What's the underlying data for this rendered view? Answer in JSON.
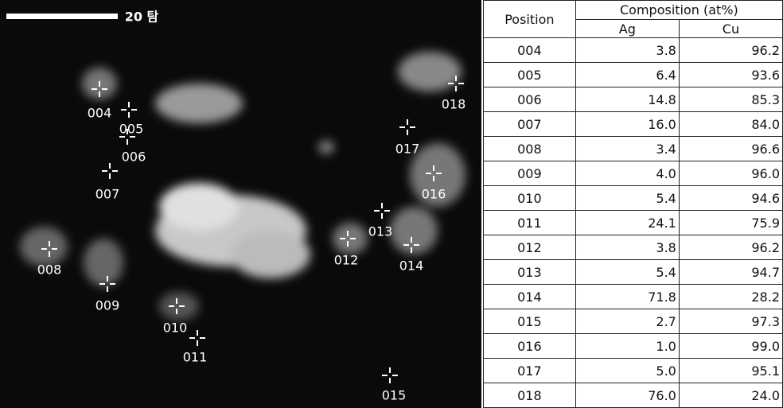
{
  "image": {
    "scale_label": "20 탐",
    "points": [
      "004",
      "005",
      "006",
      "007",
      "008",
      "009",
      "010",
      "011",
      "012",
      "013",
      "014",
      "015",
      "016",
      "017",
      "018"
    ]
  },
  "table": {
    "headers": {
      "position": "Position",
      "composition": "Composition (at%)",
      "ag": "Ag",
      "cu": "Cu"
    },
    "rows": [
      [
        "004",
        "3.8",
        "96.2"
      ],
      [
        "005",
        "6.4",
        "93.6"
      ],
      [
        "006",
        "14.8",
        "85.3"
      ],
      [
        "007",
        "16.0",
        "84.0"
      ],
      [
        "008",
        "3.4",
        "96.6"
      ],
      [
        "009",
        "4.0",
        "96.0"
      ],
      [
        "010",
        "5.4",
        "94.6"
      ],
      [
        "011",
        "24.1",
        "75.9"
      ],
      [
        "012",
        "3.8",
        "96.2"
      ],
      [
        "013",
        "5.4",
        "94.7"
      ],
      [
        "014",
        "71.8",
        "28.2"
      ],
      [
        "015",
        "2.7",
        "97.3"
      ],
      [
        "016",
        "1.0",
        "99.0"
      ],
      [
        "017",
        "5.0",
        "95.1"
      ],
      [
        "018",
        "76.0",
        "24.0"
      ]
    ]
  }
}
